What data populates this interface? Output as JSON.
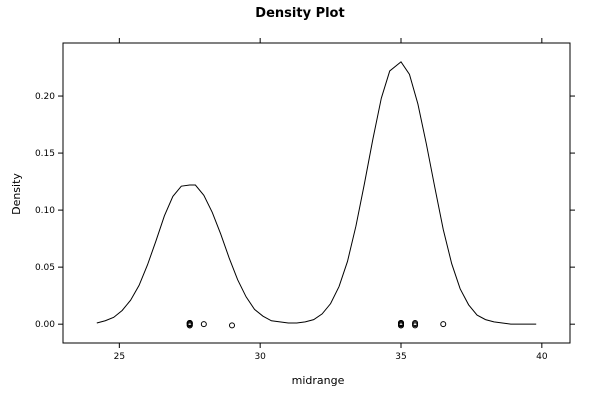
{
  "chart_data": {
    "type": "line",
    "title": "Density Plot",
    "xlabel": "midrange",
    "ylabel": "Density",
    "xlim": [
      23.0,
      41.0
    ],
    "ylim": [
      -0.0165,
      0.2465
    ],
    "x_ticks": [
      25,
      30,
      35,
      40
    ],
    "x_tick_labels": [
      "25",
      "30",
      "35",
      "40"
    ],
    "y_ticks": [
      0.0,
      0.05,
      0.1,
      0.15,
      0.2
    ],
    "y_tick_labels": [
      "0.00",
      "0.05",
      "0.10",
      "0.15",
      "0.20"
    ],
    "grid": false,
    "legend": "none",
    "series": [
      {
        "x": [
          24.2,
          24.5,
          24.8,
          25.1,
          25.4,
          25.7,
          26.0,
          26.3,
          26.6,
          26.9,
          27.2,
          27.5,
          27.7,
          28.0,
          28.3,
          28.6,
          28.9,
          29.2,
          29.5,
          29.8,
          30.1,
          30.4,
          30.7,
          31.0,
          31.3,
          31.6,
          31.9,
          32.2,
          32.5,
          32.8,
          33.1,
          33.4,
          33.7,
          34.0,
          34.3,
          34.6,
          34.9,
          35.0,
          35.3,
          35.6,
          35.9,
          36.2,
          36.5,
          36.8,
          37.1,
          37.4,
          37.7,
          38.0,
          38.3,
          38.6,
          38.9,
          39.2,
          39.5,
          39.8
        ],
        "y": [
          0.001,
          0.003,
          0.006,
          0.012,
          0.021,
          0.034,
          0.052,
          0.073,
          0.095,
          0.112,
          0.121,
          0.122,
          0.122,
          0.113,
          0.098,
          0.079,
          0.058,
          0.039,
          0.024,
          0.013,
          0.007,
          0.003,
          0.002,
          0.001,
          0.001,
          0.002,
          0.004,
          0.009,
          0.018,
          0.033,
          0.055,
          0.086,
          0.123,
          0.162,
          0.198,
          0.222,
          0.228,
          0.23,
          0.219,
          0.193,
          0.158,
          0.12,
          0.083,
          0.053,
          0.031,
          0.017,
          0.008,
          0.004,
          0.002,
          0.001,
          0.0,
          0.0,
          0.0,
          0.0
        ]
      }
    ],
    "rug_points": {
      "x": [
        27.5,
        27.5,
        27.5,
        27.5,
        27.5,
        27.5,
        27.5,
        28.0,
        29.0,
        35.0,
        35.0,
        35.0,
        35.0,
        35.0,
        35.0,
        35.0,
        35.5,
        35.5,
        35.5,
        36.5
      ],
      "y": [
        0.0,
        0.0,
        0.0,
        0.0,
        0.0,
        0.0,
        0.0,
        0.0,
        0.0,
        0.0,
        0.0,
        0.0,
        0.0,
        0.0,
        0.0,
        0.0,
        0.0,
        0.0,
        0.0,
        0.0
      ]
    },
    "colors": {
      "line": "#000000",
      "points": "#000000",
      "frame": "#000000"
    }
  }
}
